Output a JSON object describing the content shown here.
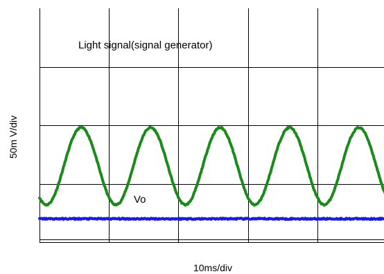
{
  "chart_data": {
    "type": "line",
    "title": "",
    "xlabel": "10ms/div",
    "ylabel": "50m V/div",
    "x_unit": "ms",
    "y_unit": "mV",
    "x_divisions": 5,
    "y_divisions": 4,
    "xlim": [
      0,
      50
    ],
    "ylim": [
      -50,
      150
    ],
    "grid": true,
    "legend": "none",
    "series": [
      {
        "name": "Light signal(signal generator)",
        "color": "#1a8a1a",
        "shape": "sine",
        "offset_mv": 15,
        "amplitude_mv": 33,
        "period_ms": 10,
        "x_first_peak_ms": 6,
        "x_range_ms": [
          0,
          50
        ],
        "noise_mv": 0.6
      },
      {
        "name": "Vo",
        "color": "#1a1ae6",
        "shape": "flat",
        "offset_mv": -30,
        "amplitude_mv": 0,
        "x_range_ms": [
          0,
          50
        ],
        "noise_mv": 0.6
      }
    ]
  }
}
